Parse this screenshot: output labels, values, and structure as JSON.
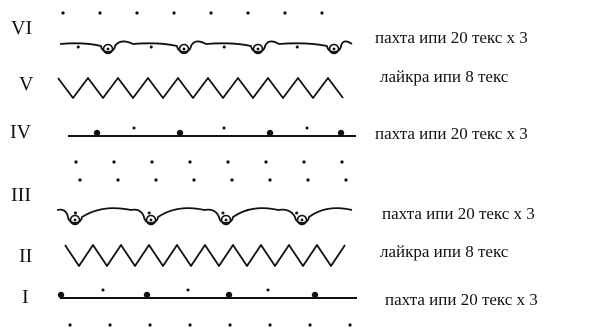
{
  "rows": [
    {
      "numeral": "VI",
      "label": "пахта ипи 20 текс х 3",
      "pattern": "loop-wave"
    },
    {
      "numeral": "V",
      "label": "лайкра ипи 8 текс",
      "pattern": "zigzag"
    },
    {
      "numeral": "IV",
      "label": "пахта ипи 20 текс х 3",
      "pattern": "straight-beads"
    },
    {
      "numeral": "III",
      "label": "",
      "pattern": "loop-wave"
    },
    {
      "numeral": "II",
      "label": "лайкра ипи 8 текс",
      "pattern": "zigzag"
    },
    {
      "numeral": "I",
      "label": "пахта ипи 20 текс х 3",
      "pattern": "straight-beads"
    }
  ],
  "extra_labels": [
    "пахта ипи 20 текс х 3"
  ],
  "colors": {
    "ink": "#111111",
    "background": "#ffffff"
  }
}
